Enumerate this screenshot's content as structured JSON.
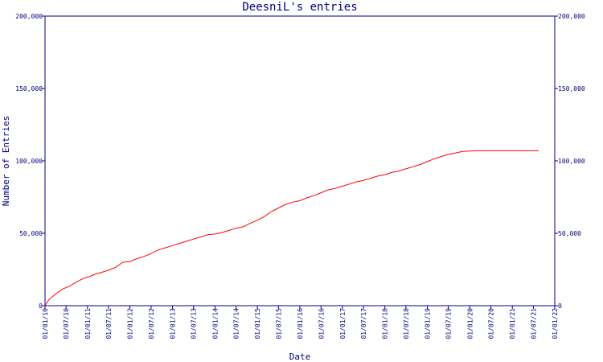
{
  "chart_data": {
    "type": "line",
    "title": "DeesniL's entries",
    "xlabel": "Date",
    "ylabel": "Number of Entries",
    "ylim": [
      0,
      200000
    ],
    "y_ticks": [
      0,
      50000,
      100000,
      150000,
      200000
    ],
    "y_tick_labels": [
      "0",
      "50,000",
      "100,000",
      "150,000",
      "200,000"
    ],
    "x_range": [
      "2010-01-01",
      "2022-01-01"
    ],
    "x_ticks": [
      "2010-01-01",
      "2010-07-01",
      "2011-01-01",
      "2011-07-01",
      "2012-01-01",
      "2012-07-01",
      "2013-01-01",
      "2013-07-01",
      "2014-01-01",
      "2014-07-01",
      "2015-01-01",
      "2015-07-01",
      "2016-01-01",
      "2016-07-01",
      "2017-01-01",
      "2017-07-01",
      "2018-01-01",
      "2018-07-01",
      "2019-01-01",
      "2019-07-01",
      "2020-01-01",
      "2020-07-01",
      "2021-01-01",
      "2021-07-01",
      "2022-01-01"
    ],
    "x_tick_labels": [
      "01/01/10",
      "01/07/10",
      "01/01/11",
      "01/07/11",
      "01/01/12",
      "01/07/12",
      "01/01/13",
      "01/07/13",
      "01/01/14",
      "01/07/14",
      "01/01/15",
      "01/07/15",
      "01/01/16",
      "01/07/16",
      "01/01/17",
      "01/07/17",
      "01/01/18",
      "01/07/18",
      "01/01/19",
      "01/07/19",
      "01/01/20",
      "01/07/20",
      "01/01/21",
      "01/07/21",
      "01/01/22"
    ],
    "grid": false,
    "colors": {
      "axis": "#000080",
      "line": "#ff0000",
      "background": "#ffffff"
    },
    "series": [
      {
        "x": [
          "2010-01-01",
          "2010-02-01",
          "2010-04-01",
          "2010-06-01",
          "2010-08-01",
          "2010-10-01",
          "2010-12-01",
          "2011-01-15",
          "2011-03-15",
          "2011-05-01",
          "2011-07-01",
          "2011-09-01",
          "2011-11-01",
          "2012-01-01",
          "2012-03-01",
          "2012-05-01",
          "2012-07-01",
          "2012-09-01",
          "2012-11-01",
          "2013-01-01",
          "2013-03-01",
          "2013-05-01",
          "2013-07-01",
          "2013-09-01",
          "2013-11-01",
          "2014-01-01",
          "2014-03-01",
          "2014-05-01",
          "2014-07-01",
          "2014-09-01",
          "2014-11-01",
          "2015-01-01",
          "2015-03-01",
          "2015-05-01",
          "2015-07-01",
          "2015-09-01",
          "2015-11-01",
          "2016-01-01",
          "2016-03-01",
          "2016-05-01",
          "2016-07-01",
          "2016-09-01",
          "2016-11-01",
          "2017-01-01",
          "2017-03-01",
          "2017-05-01",
          "2017-07-01",
          "2017-09-01",
          "2017-11-01",
          "2018-01-01",
          "2018-03-01",
          "2018-05-01",
          "2018-07-01",
          "2018-09-01",
          "2018-11-01",
          "2019-01-01",
          "2019-03-01",
          "2019-05-01",
          "2019-07-01",
          "2019-09-01",
          "2019-11-01",
          "2020-01-01",
          "2020-03-01",
          "2020-07-01",
          "2021-01-01",
          "2021-07-01",
          "2021-08-15"
        ],
        "values": [
          0,
          4000,
          8000,
          11500,
          13500,
          16500,
          19000,
          20000,
          22000,
          23000,
          24500,
          26500,
          30000,
          30500,
          32500,
          34000,
          36000,
          38500,
          40000,
          41500,
          43000,
          44500,
          46000,
          47500,
          49000,
          49500,
          50500,
          52000,
          53500,
          54500,
          57000,
          59000,
          61500,
          65000,
          67500,
          70000,
          71500,
          72500,
          74500,
          76000,
          78000,
          80000,
          81000,
          82500,
          84000,
          85500,
          86500,
          88000,
          89500,
          90500,
          92000,
          93000,
          94500,
          96000,
          97500,
          99500,
          101500,
          103000,
          104500,
          105500,
          106500,
          106800,
          107000,
          107000,
          107000,
          107000,
          107000
        ]
      }
    ]
  }
}
